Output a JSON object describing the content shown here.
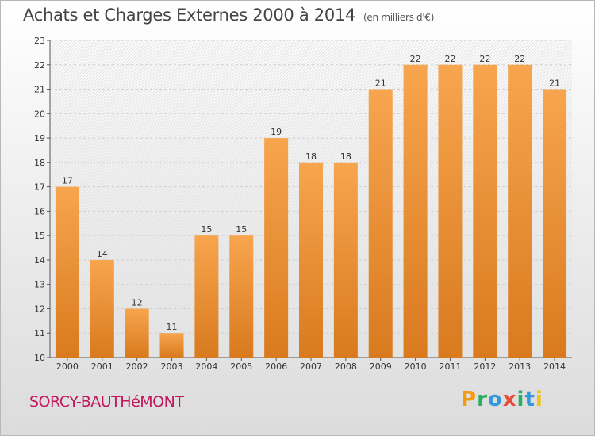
{
  "header": {
    "title": "Achats et Charges Externes 2000 à 2014",
    "subtitle": "(en milliers d'€)"
  },
  "footer": {
    "commune": "SORCY-BAUTHéMONT",
    "logo_letters": [
      "P",
      "r",
      "o",
      "x",
      "i",
      "t",
      "i"
    ],
    "logo_colors": [
      "#f39c12",
      "#27ae60",
      "#3498db",
      "#e74c3c",
      "#27ae60",
      "#3498db",
      "#f1c40f"
    ]
  },
  "chart_data": {
    "type": "bar",
    "title": "Achats et Charges Externes 2000 à 2014",
    "subtitle": "(en milliers d'€)",
    "xlabel": "",
    "ylabel": "",
    "categories": [
      "2000",
      "2001",
      "2002",
      "2003",
      "2004",
      "2005",
      "2006",
      "2007",
      "2008",
      "2009",
      "2010",
      "2011",
      "2012",
      "2013",
      "2014"
    ],
    "values": [
      17,
      14,
      12,
      11,
      15,
      15,
      19,
      18,
      18,
      21,
      22,
      22,
      22,
      22,
      21
    ],
    "ylim": [
      10,
      23
    ],
    "yticks": [
      10,
      11,
      12,
      13,
      14,
      15,
      16,
      17,
      18,
      19,
      20,
      21,
      22,
      23
    ],
    "grid": true,
    "bar_color_top": "#f7a54e",
    "bar_color_bottom": "#d97a1e"
  }
}
